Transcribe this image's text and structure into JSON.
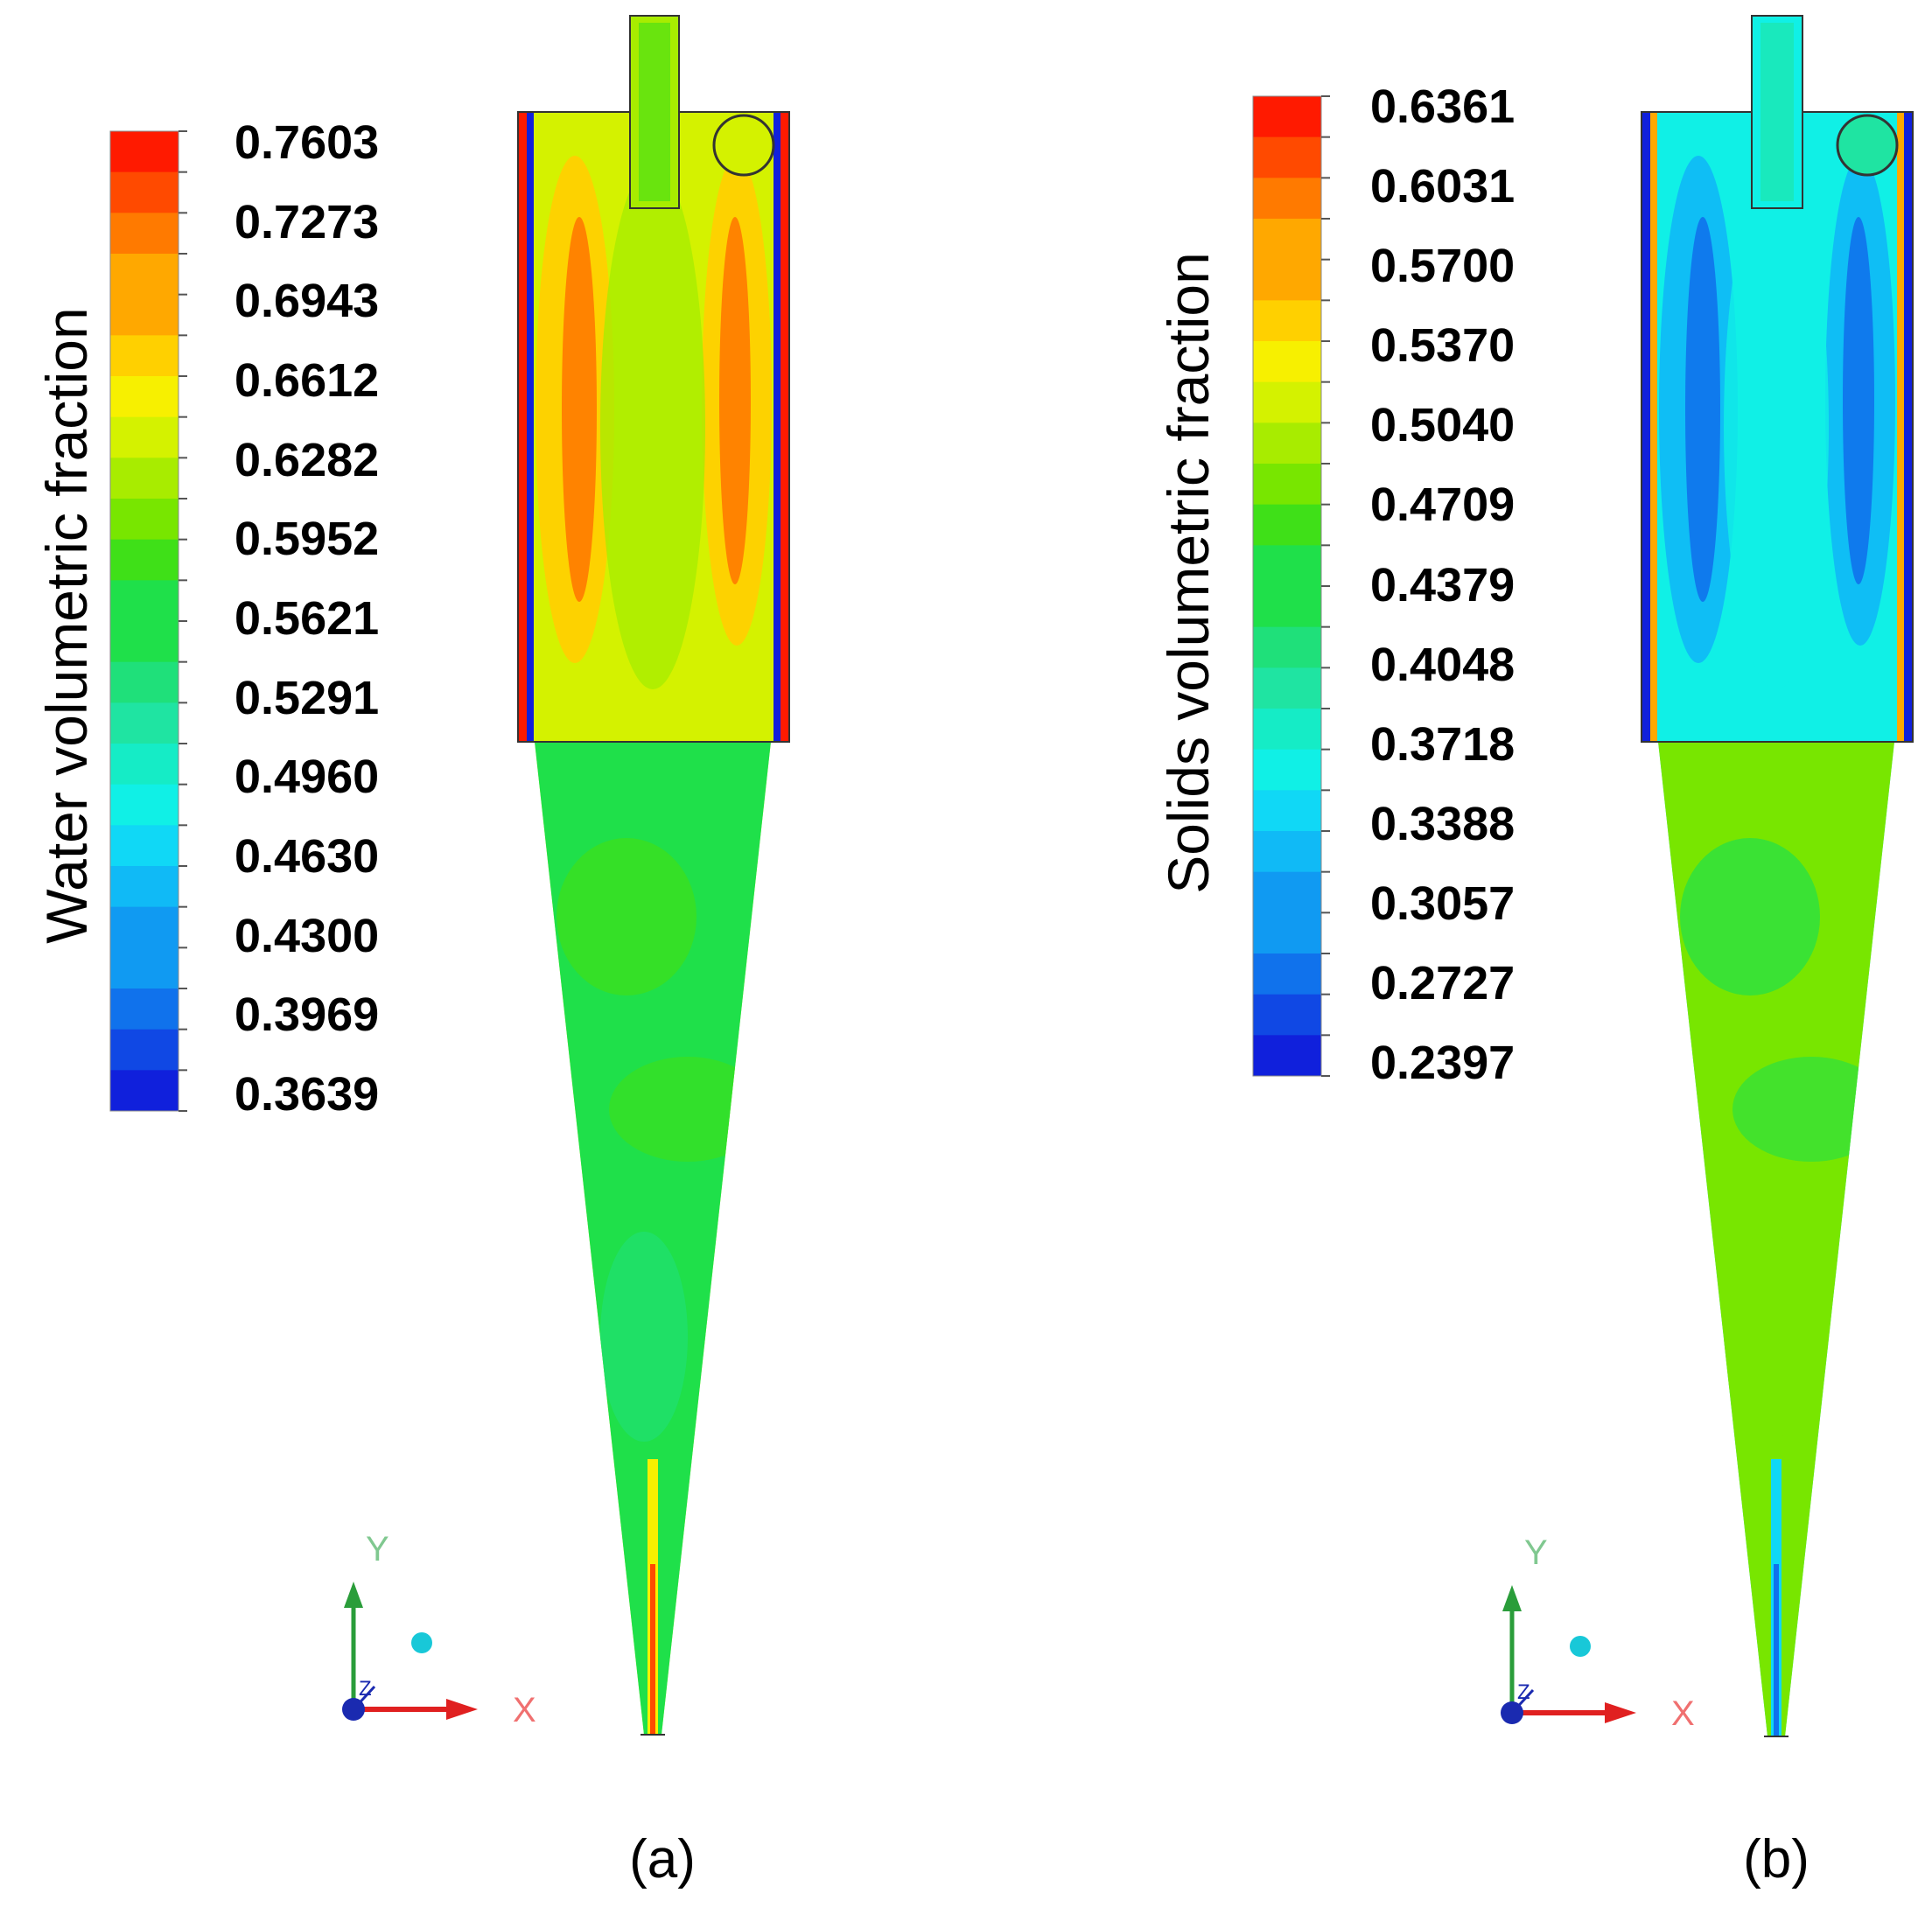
{
  "panels": [
    {
      "id": "a",
      "colorbar_title": "Water volumetric fraction",
      "colorbar_ticks": [
        "0.7603",
        "0.7273",
        "0.6943",
        "0.6612",
        "0.6282",
        "0.5952",
        "0.5621",
        "0.5291",
        "0.4960",
        "0.4630",
        "0.4300",
        "0.3969",
        "0.3639"
      ],
      "caption": "(a)",
      "axes": {
        "x": "X",
        "y": "Y",
        "z": "Z"
      }
    },
    {
      "id": "b",
      "colorbar_title": "Solids volumetric fraction",
      "colorbar_ticks": [
        "0.6361",
        "0.6031",
        "0.5700",
        "0.5370",
        "0.5040",
        "0.4709",
        "0.4379",
        "0.4048",
        "0.3718",
        "0.3388",
        "0.3057",
        "0.2727",
        "0.2397"
      ],
      "caption": "(b)",
      "axes": {
        "x": "X",
        "y": "Y",
        "z": "Z"
      }
    }
  ],
  "colormap": [
    "#ff1a00",
    "#ff4a00",
    "#ff7a00",
    "#ffa800",
    "#ffd000",
    "#f7f000",
    "#d4f200",
    "#a8ec00",
    "#78e600",
    "#3fe018",
    "#1fe04a",
    "#1fe07a",
    "#1fe4a2",
    "#15ecc6",
    "#10f0e6",
    "#10d8f6",
    "#10baf6",
    "#109af2",
    "#1072ec",
    "#1048e4",
    "#1020dc"
  ],
  "colors": {
    "axis_x": "#e02020",
    "axis_y": "#2a9d3a",
    "axis_z": "#1a2ab0",
    "axis_label_x": "#f07070",
    "axis_label_y": "#80c890",
    "outline": "#333333"
  }
}
